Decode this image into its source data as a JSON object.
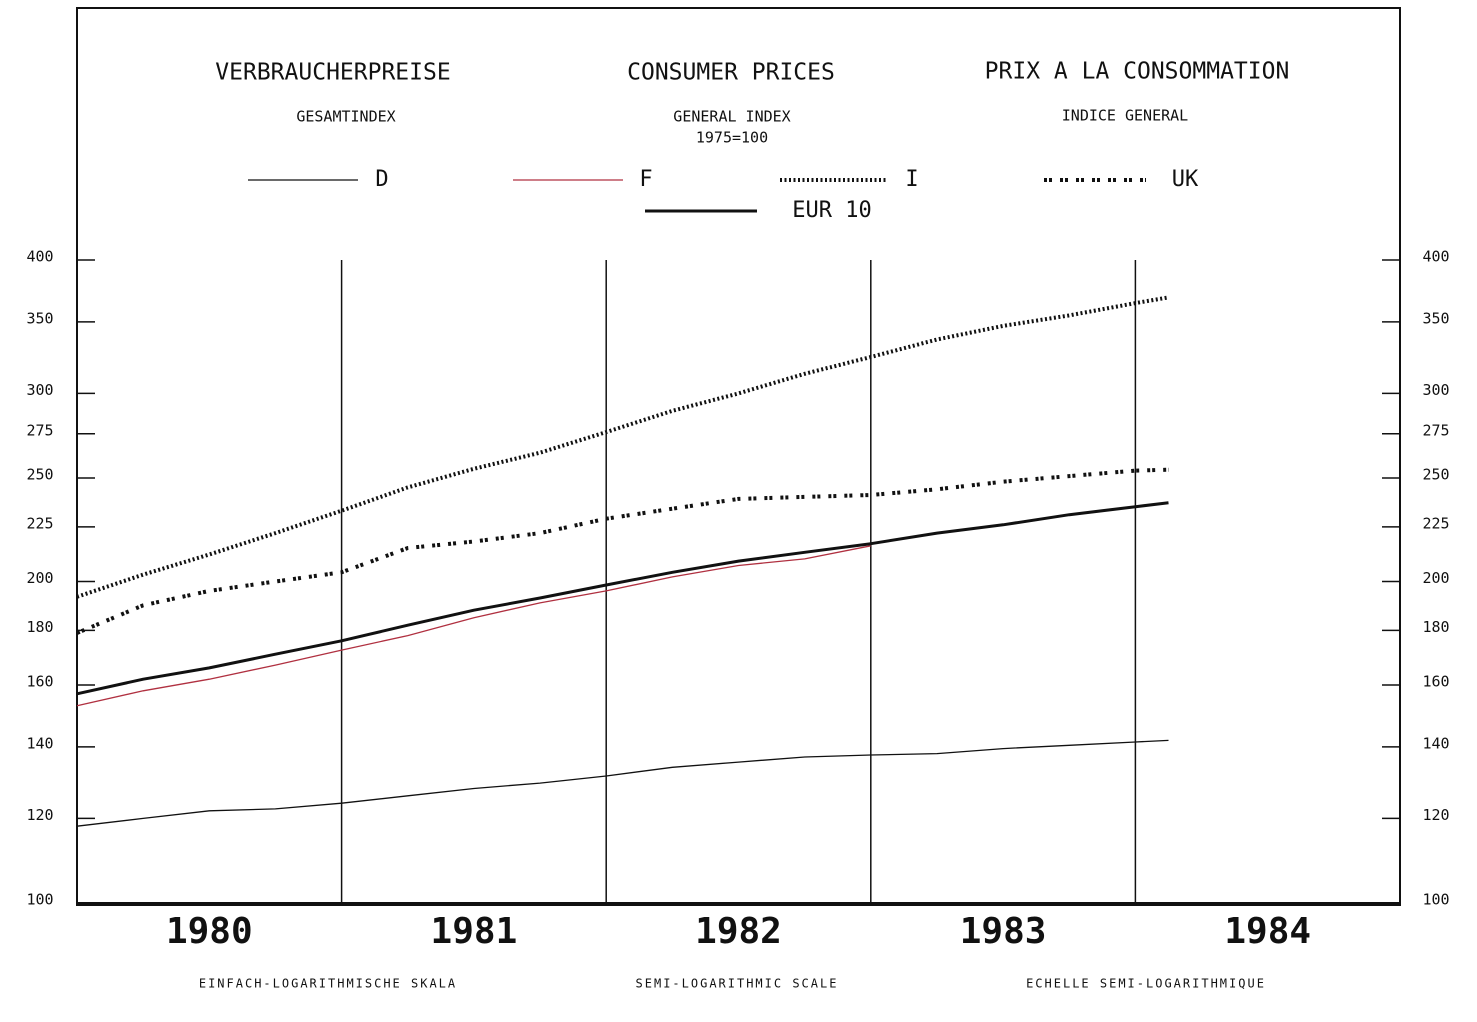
{
  "chart_data": {
    "type": "line",
    "title": [
      "VERBRAUCHERPREISE",
      "CONSUMER PRICES",
      "PRIX A LA CONSOMMATION"
    ],
    "subtitle": [
      "GESAMTINDEX",
      "GENERAL INDEX",
      "INDICE GENERAL"
    ],
    "base_note": "1975=100",
    "x_label": [
      "EINFACH-LOGARITHMISCHE SKALA",
      "SEMI-LOGARITHMIC SCALE",
      "ECHELLE SEMI-LOGARITHMIQUE"
    ],
    "x": [
      1980.0,
      1980.25,
      1980.5,
      1980.75,
      1981.0,
      1981.25,
      1981.5,
      1981.75,
      1982.0,
      1982.25,
      1982.5,
      1982.75,
      1983.0,
      1983.25,
      1983.5,
      1983.75,
      1984.0,
      1984.125
    ],
    "series": [
      {
        "name": "D",
        "color": "#111111",
        "style": "solid",
        "width": 1.3,
        "values": [
          118,
          120,
          122,
          122.5,
          124,
          126,
          128,
          129.5,
          131.5,
          134,
          135.5,
          137,
          137.6,
          138,
          139.5,
          140.5,
          141.5,
          142
        ]
      },
      {
        "name": "F",
        "color": "#b03040",
        "style": "solid",
        "width": 1.3,
        "values": [
          153,
          158,
          162,
          167,
          172.5,
          178,
          185,
          191,
          196,
          202,
          207,
          210,
          216,
          null,
          null,
          null,
          null,
          null
        ]
      },
      {
        "name": "I",
        "color": "#111111",
        "style": "dotted",
        "width": 4,
        "values": [
          193.5,
          203,
          212,
          222,
          233,
          245,
          255,
          264,
          276,
          289,
          300,
          313,
          324.5,
          337,
          347,
          355,
          364.5,
          369
        ]
      },
      {
        "name": "UK",
        "color": "#111111",
        "style": "dashed",
        "width": 4,
        "values": [
          179,
          190,
          196,
          200,
          204,
          215,
          218,
          222,
          229,
          234,
          239,
          240,
          241,
          244,
          248,
          251,
          254,
          254.5
        ]
      },
      {
        "name": "EUR 10",
        "color": "#111111",
        "style": "solid",
        "width": 3,
        "values": [
          157,
          162,
          166,
          171,
          176,
          182,
          188,
          193,
          198.5,
          204,
          209,
          213,
          217,
          222,
          226,
          231,
          235,
          237
        ]
      }
    ],
    "ylim": [
      100,
      400
    ],
    "ylog": true,
    "yticks": [
      100,
      120,
      140,
      160,
      180,
      200,
      225,
      250,
      275,
      300,
      350,
      400
    ],
    "xlim": [
      1980,
      1985
    ],
    "xticks": [
      {
        "value": 1980.5,
        "label": "1980"
      },
      {
        "value": 1981.5,
        "label": "1981"
      },
      {
        "value": 1982.5,
        "label": "1982"
      },
      {
        "value": 1983.5,
        "label": "1983"
      },
      {
        "value": 1984.5,
        "label": "1984"
      }
    ],
    "xgrid": [
      1981,
      1982,
      1983,
      1984
    ]
  }
}
